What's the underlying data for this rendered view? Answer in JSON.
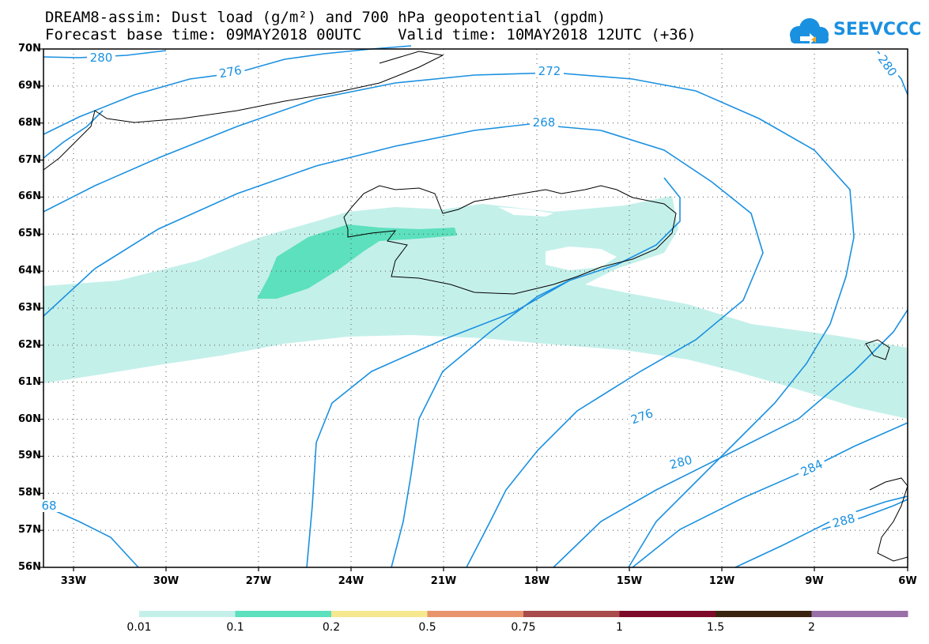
{
  "title_line1": "DREAM8-assim: Dust load (g/m²) and 700 hPa geopotential (gpdm)",
  "title_line2": "Forecast base time: 09MAY2018 00UTC    Valid time: 10MAY2018 12UTC (+36)",
  "logo": {
    "text": "SEEVCCC",
    "icon": "cloud-icon",
    "color": "#1a90e0"
  },
  "map": {
    "lat_labels": [
      "70N",
      "69N",
      "68N",
      "67N",
      "66N",
      "65N",
      "64N",
      "63N",
      "62N",
      "61N",
      "60N",
      "59N",
      "58N",
      "57N",
      "56N"
    ],
    "lon_labels": [
      "33W",
      "30W",
      "27W",
      "24W",
      "21W",
      "18W",
      "15W",
      "12W",
      "9W",
      "6W"
    ],
    "contour_color": "#1a90e0",
    "contour_labels": [
      "280",
      "276",
      "272",
      "268",
      "280",
      "276",
      "280",
      "284",
      "288",
      "68"
    ]
  },
  "colorbar": {
    "colors": [
      "#c4f0ea",
      "#5ce0bd",
      "#f5e88e",
      "#e8956e",
      "#a84c4c",
      "#7e0a2a",
      "#3a2410",
      "#9a70a8"
    ],
    "labels": [
      "0.01",
      "0.1",
      "0.2",
      "0.5",
      "0.75",
      "1",
      "1.5",
      "2"
    ]
  }
}
